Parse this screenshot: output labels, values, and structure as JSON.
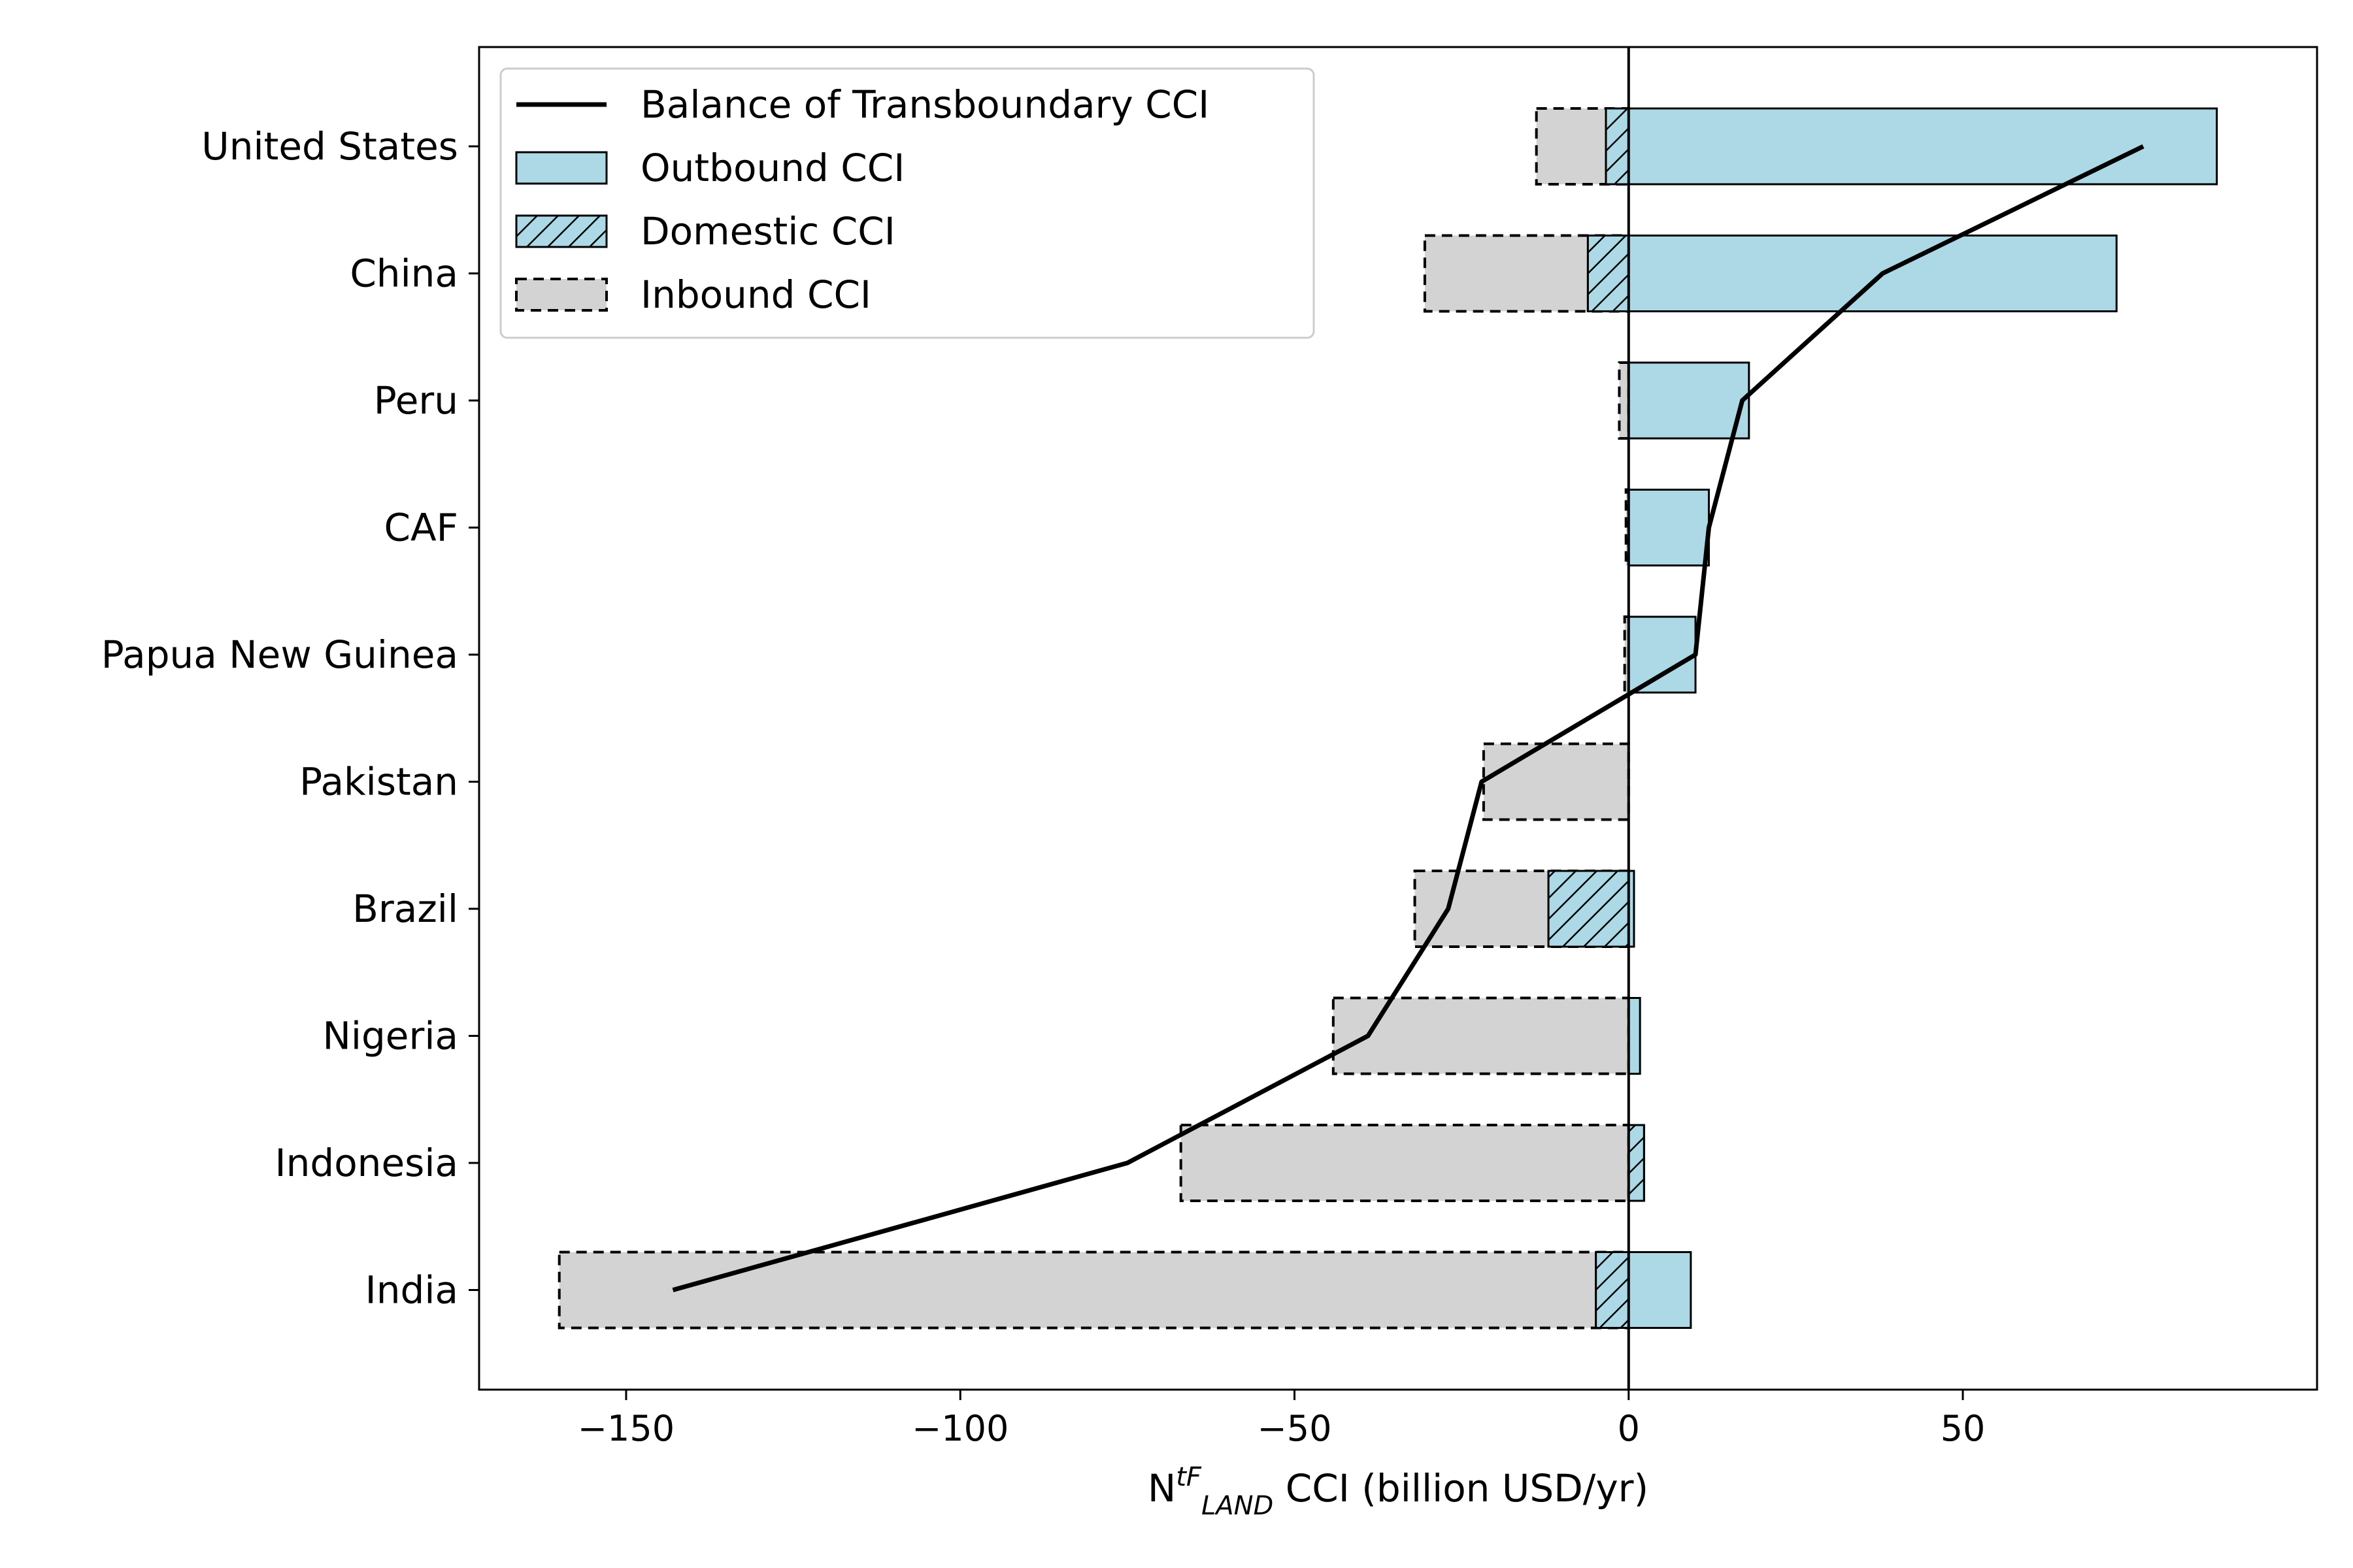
{
  "chart_data": {
    "type": "bar",
    "orientation": "horizontal",
    "title": "",
    "xlabel": {
      "prefix": "N",
      "sup": "tF",
      "sub": "LAND",
      "suffix": " CCI (billion USD/yr)"
    },
    "ylabel": "",
    "xlim": [
      -172,
      103
    ],
    "xticks": [
      -150,
      -100,
      -50,
      0,
      50
    ],
    "xtick_labels": [
      "−150",
      "−100",
      "−50",
      "0",
      "50"
    ],
    "grid": false,
    "legend_position": "top-left",
    "categories": [
      "United States",
      "China",
      "Peru",
      "CAF",
      "Papua New Guinea",
      "Pakistan",
      "Brazil",
      "Nigeria",
      "Indonesia",
      "India"
    ],
    "series": [
      {
        "name": "Balance of Transboundary CCI",
        "kind": "line",
        "color": "#000000",
        "values": [
          77,
          38,
          17,
          12,
          10,
          -22,
          -27,
          -39,
          -75,
          -143
        ]
      },
      {
        "name": "Outbound CCI",
        "kind": "bar",
        "color": "#add8e6",
        "values": [
          88,
          73,
          18,
          12,
          10,
          0,
          0.8,
          1.7,
          2.3,
          9.3
        ]
      },
      {
        "name": "Domestic CCI",
        "kind": "bar-hatched",
        "color": "#add8e6",
        "values": [
          -3.4,
          -6.1,
          0,
          0,
          0,
          0,
          -12,
          0,
          2.3,
          -4.9
        ]
      },
      {
        "name": "Inbound CCI",
        "kind": "bar-dashed",
        "color": "#d3d3d3",
        "values": [
          -13.8,
          -30.5,
          -1.4,
          -0.4,
          -0.6,
          -21.7,
          -32,
          -44.2,
          -67,
          -160
        ]
      }
    ]
  }
}
